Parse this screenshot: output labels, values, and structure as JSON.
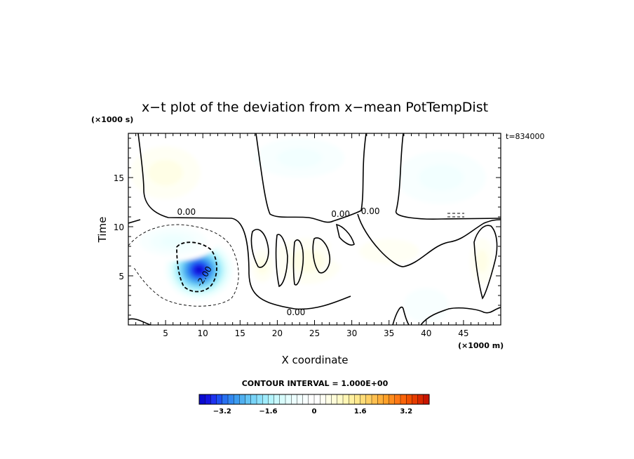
{
  "chart_data": {
    "type": "heatmap",
    "title": "x−t plot of the deviation from x−mean PotTempDist",
    "xlabel": "X coordinate",
    "ylabel": "Time",
    "x_unit": "(×1000 m)",
    "y_unit": "(×1000 s)",
    "time_label": "t=834000",
    "xlim": [
      0,
      50
    ],
    "ylim": [
      0,
      19.5
    ],
    "x_ticks": [
      5,
      10,
      15,
      20,
      25,
      30,
      35,
      40,
      45
    ],
    "y_ticks": [
      5,
      10,
      15
    ],
    "contour_labels": [
      {
        "text": "0.00",
        "x": 7.8,
        "y": 11.2
      },
      {
        "text": "0.00",
        "x": 28.5,
        "y": 11.0
      },
      {
        "text": "0.00",
        "x": 32.5,
        "y": 11.3
      },
      {
        "text": "0.00",
        "x": 22.5,
        "y": 1.0
      },
      {
        "text": "-2.00",
        "x": 10.5,
        "y": 4.8
      }
    ],
    "fields": [
      {
        "kind": "neg",
        "x": 9.5,
        "y": 5.6,
        "sx": 4.8,
        "sy": 3.2,
        "a": 4.2
      },
      {
        "kind": "neg",
        "x": 6.0,
        "y": 8.5,
        "sx": 6.0,
        "sy": 2.0,
        "a": 0.8
      },
      {
        "kind": "neg",
        "x": 23.0,
        "y": 17.0,
        "sx": 9.0,
        "sy": 3.0,
        "a": 0.5
      },
      {
        "kind": "neg",
        "x": 42.0,
        "y": 15.0,
        "sx": 9.0,
        "sy": 4.0,
        "a": 0.5
      },
      {
        "kind": "neg",
        "x": 40.0,
        "y": 2.0,
        "sx": 6.0,
        "sy": 3.5,
        "a": 0.4
      },
      {
        "kind": "pos",
        "x": 5.0,
        "y": 15.5,
        "sx": 7.0,
        "sy": 4.0,
        "a": 0.5
      },
      {
        "kind": "pos",
        "x": 24.0,
        "y": 6.5,
        "sx": 7.0,
        "sy": 3.5,
        "a": 0.7
      },
      {
        "kind": "pos",
        "x": 18.0,
        "y": 6.0,
        "sx": 2.2,
        "sy": 2.5,
        "a": 0.6
      },
      {
        "kind": "pos",
        "x": 47.5,
        "y": 6.5,
        "sx": 2.4,
        "sy": 3.5,
        "a": 0.7
      },
      {
        "kind": "pos",
        "x": 35.0,
        "y": 7.5,
        "sx": 8.0,
        "sy": 2.5,
        "a": 0.4
      },
      {
        "kind": "pos",
        "x": 33.0,
        "y": 17.5,
        "sx": 3.0,
        "sy": 3.0,
        "a": 0.3
      }
    ],
    "colorbar": {
      "title": "CONTOUR INTERVAL = 1.000E+00",
      "min": -4.0,
      "max": 4.0,
      "step": 0.2,
      "tick_values": [
        -3.2,
        -1.6,
        0,
        1.6,
        3.2
      ],
      "tick_labels": [
        "−3.2",
        "−1.6",
        "0",
        "1.6",
        "3.2"
      ],
      "colors": [
        "#0a0ad0",
        "#1414e0",
        "#1e32f0",
        "#1e50f0",
        "#2870f0",
        "#3288f0",
        "#3c9cf0",
        "#50b0f0",
        "#64c4f4",
        "#78d4f8",
        "#8ce0fa",
        "#a0ecfc",
        "#b4f4fc",
        "#c8f8fc",
        "#d8fcfc",
        "#e4fefe",
        "#ecffff",
        "#f2ffff",
        "#f8ffff",
        "#ffffff",
        "#ffffff",
        "#fffff4",
        "#fffee6",
        "#fffcd8",
        "#fffac8",
        "#fff6b4",
        "#fff0a0",
        "#ffe88c",
        "#ffdc78",
        "#ffd064",
        "#ffc050",
        "#ffb03c",
        "#ffa028",
        "#ff8c1e",
        "#ff7814",
        "#fa640a",
        "#f05000",
        "#e63c00",
        "#d82800",
        "#c81400"
      ]
    }
  }
}
